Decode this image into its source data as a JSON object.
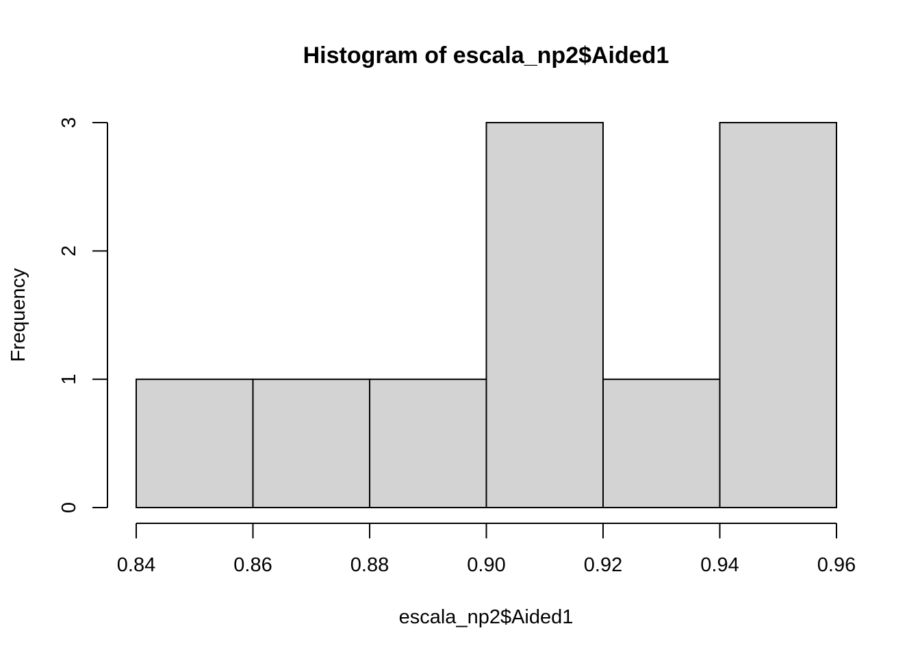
{
  "chart_data": {
    "type": "bar",
    "title": "Histogram of escala_np2$Aided1",
    "xlabel": "escala_np2$Aided1",
    "ylabel": "Frequency",
    "bins": [
      {
        "start": 0.84,
        "end": 0.86,
        "count": 1
      },
      {
        "start": 0.86,
        "end": 0.88,
        "count": 1
      },
      {
        "start": 0.88,
        "end": 0.9,
        "count": 1
      },
      {
        "start": 0.9,
        "end": 0.92,
        "count": 3
      },
      {
        "start": 0.92,
        "end": 0.94,
        "count": 1
      },
      {
        "start": 0.94,
        "end": 0.96,
        "count": 3
      }
    ],
    "xlim": [
      0.84,
      0.96
    ],
    "ylim": [
      0,
      3
    ],
    "x_ticks": [
      "0.84",
      "0.86",
      "0.88",
      "0.90",
      "0.92",
      "0.94",
      "0.96"
    ],
    "y_ticks": [
      "0",
      "1",
      "2",
      "3"
    ],
    "grid": false,
    "colors": {
      "bar_fill": "#d3d3d3",
      "bar_stroke": "#000000",
      "axis": "#000000"
    }
  }
}
